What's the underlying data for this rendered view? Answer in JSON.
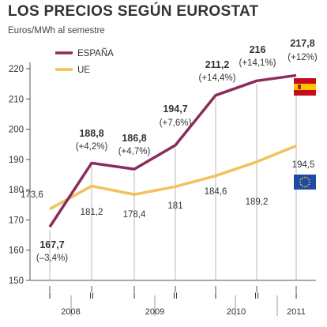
{
  "chart_data": {
    "type": "line",
    "title": "LOS PRECIOS SEGÚN EUROSTAT",
    "subtitle": "Euros/MWh al semestre",
    "ylim": [
      150,
      220
    ],
    "yticks": [
      150,
      160,
      170,
      180,
      190,
      200,
      210,
      220
    ],
    "x": [
      "I",
      "II",
      "I",
      "II",
      "I",
      "II",
      "I"
    ],
    "year_labels": [
      {
        "label": "2008",
        "from": 0,
        "to": 1
      },
      {
        "label": "2009",
        "from": 2,
        "to": 3
      },
      {
        "label": "2010",
        "from": 4,
        "to": 5
      },
      {
        "label": "2011",
        "from": 6,
        "to": 6
      }
    ],
    "legend_position": "top-left",
    "grid": false,
    "colors": {
      "espana": "#8a2c5c",
      "ue": "#f2c25a",
      "axis": "#555555",
      "text": "#333333"
    },
    "series": [
      {
        "name": "ESPAÑA",
        "values": [
          167.7,
          188.8,
          186.8,
          194.7,
          211.2,
          216,
          217.8
        ],
        "labels": [
          "167,7",
          "188,8",
          "186,8",
          "194,7",
          "211,2",
          "216",
          "217,8"
        ],
        "changes": [
          "(–3,4%)",
          "(+4,2%)",
          "(+4,7%)",
          "(+7,6%)",
          "(+14,4%)",
          "(+14,1%)",
          "(+12%)"
        ]
      },
      {
        "name": "UE",
        "values": [
          173.6,
          181.2,
          178.4,
          181,
          184.6,
          189.2,
          194.5
        ],
        "labels": [
          "173,6",
          "181,2",
          "178,4",
          "181",
          "184,6",
          "189,2",
          "194,5"
        ]
      }
    ]
  },
  "icons": [
    "spain-flag-icon",
    "eu-flag-icon"
  ]
}
